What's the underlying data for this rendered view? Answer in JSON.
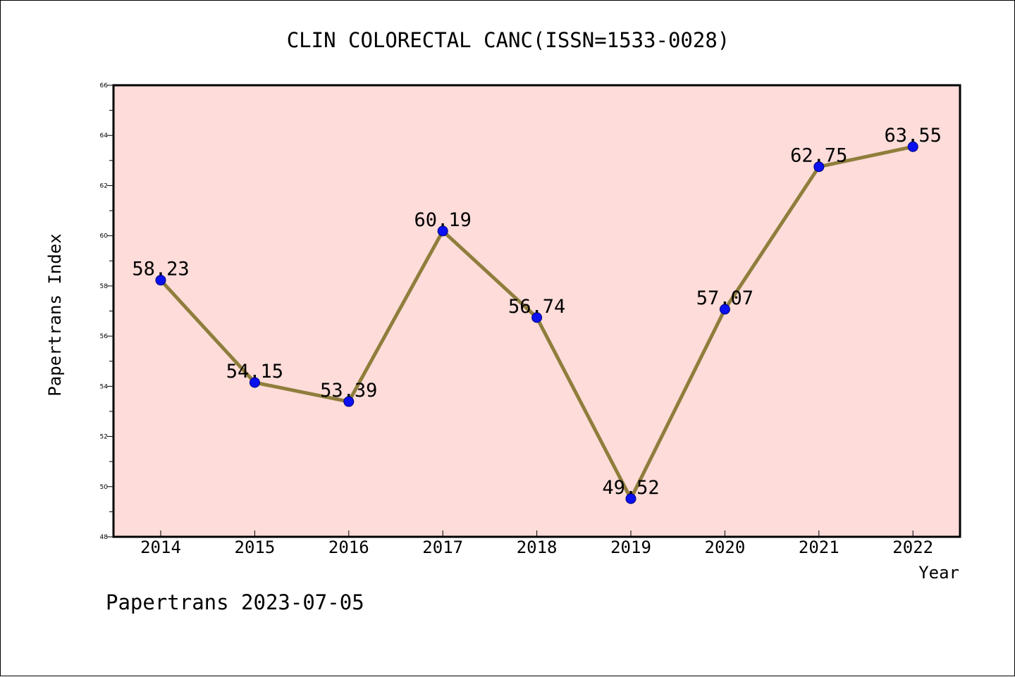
{
  "chart_data": {
    "type": "line",
    "title": "CLIN COLORECTAL CANC(ISSN=1533-0028)",
    "xlabel": "Year",
    "ylabel": "Papertrans Index",
    "footer": "Papertrans 2023-07-05",
    "x": [
      "2014",
      "2015",
      "2016",
      "2017",
      "2018",
      "2019",
      "2020",
      "2021",
      "2022"
    ],
    "values": [
      58.23,
      54.15,
      53.39,
      60.19,
      56.74,
      49.52,
      57.07,
      62.75,
      63.55
    ],
    "data_labels": [
      "58.23",
      "54.15",
      "53.39",
      "60.19",
      "56.74",
      "49.52",
      "57.07",
      "62.75",
      "63.55"
    ],
    "ylim": [
      48,
      66
    ],
    "yticks": [
      "48",
      "50",
      "52",
      "54",
      "56",
      "58",
      "60",
      "62",
      "64",
      "66"
    ],
    "grid": false,
    "legend": "none",
    "colors": {
      "plot_background": "#fddcd9",
      "line": "#8f7e3c",
      "marker": "#0a10f0"
    }
  }
}
